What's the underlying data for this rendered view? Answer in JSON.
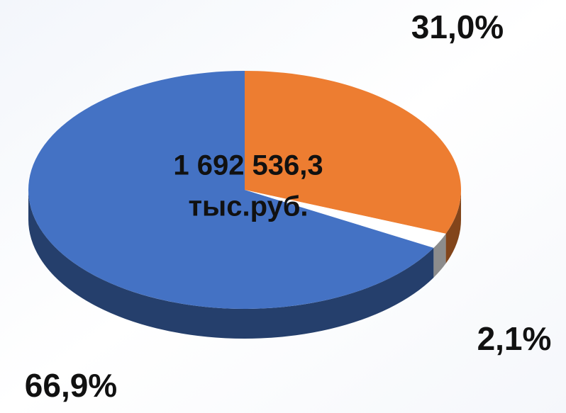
{
  "chart_data": {
    "type": "pie3d",
    "values": [
      31.0,
      2.1,
      66.9
    ],
    "value_labels": [
      "31,0%",
      "2,1%",
      "66,9%"
    ],
    "colors": [
      "#ed7d31",
      "#ffffff",
      "#4472c4"
    ],
    "annotations": [
      "1 692 536,3",
      "тыс.руб."
    ]
  }
}
